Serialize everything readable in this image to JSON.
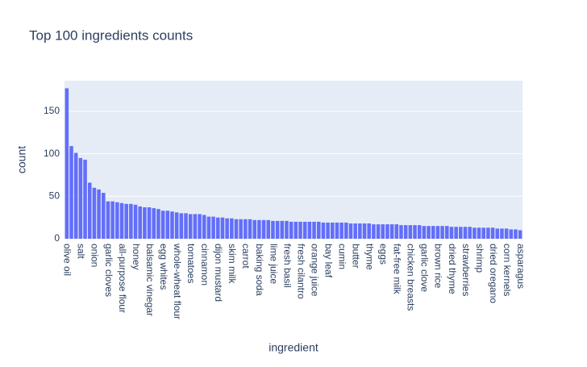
{
  "chart_data": {
    "type": "bar",
    "title": "Top 100 ingredients counts",
    "x_label": "ingredient",
    "y_label": "count",
    "categories": [
      "olive oil",
      null,
      null,
      "salt",
      null,
      null,
      "onion",
      null,
      null,
      "garlic cloves",
      null,
      null,
      "all-purpose flour",
      null,
      null,
      "honey",
      null,
      null,
      "balsamic vinegar",
      null,
      null,
      "egg whites",
      null,
      null,
      "whole-wheat flour",
      null,
      null,
      "tomatoes",
      null,
      null,
      "cinnamon",
      null,
      null,
      "dijon mustard",
      null,
      null,
      "skim milk",
      null,
      null,
      "carrot",
      null,
      null,
      "baking soda",
      null,
      null,
      "lime juice",
      null,
      null,
      "fresh basil",
      null,
      null,
      "fresh cilantro",
      null,
      null,
      "orange juice",
      null,
      null,
      "bay leaf",
      null,
      null,
      "cumin",
      null,
      null,
      "butter",
      null,
      null,
      "thyme",
      null,
      null,
      "eggs",
      null,
      null,
      "fat-free milk",
      null,
      null,
      "chicken breasts",
      null,
      null,
      "garlic clove",
      null,
      null,
      "brown rice",
      null,
      null,
      "dried thyme",
      null,
      null,
      "strawberries",
      null,
      null,
      "shrimp",
      null,
      null,
      "dried oregano",
      null,
      null,
      "corn kernels",
      null,
      null,
      "asparagus"
    ],
    "values": [
      177,
      109,
      101,
      95,
      93,
      66,
      60,
      58,
      54,
      44,
      44,
      43,
      42,
      41,
      41,
      40,
      38,
      37,
      37,
      36,
      35,
      33,
      33,
      32,
      31,
      30,
      30,
      29,
      29,
      29,
      28,
      26,
      26,
      25,
      25,
      24,
      24,
      23,
      23,
      23,
      23,
      22,
      22,
      22,
      22,
      21,
      21,
      21,
      21,
      20,
      20,
      20,
      20,
      20,
      20,
      20,
      19,
      19,
      19,
      19,
      19,
      19,
      18,
      18,
      18,
      18,
      18,
      17,
      17,
      17,
      17,
      17,
      17,
      16,
      16,
      16,
      16,
      16,
      15,
      15,
      15,
      15,
      15,
      15,
      14,
      14,
      14,
      14,
      14,
      13,
      13,
      13,
      13,
      13,
      12,
      12,
      12,
      11,
      11,
      10
    ],
    "color": "#636efa",
    "ylim": [
      0,
      186
    ],
    "yticks": [
      0,
      50,
      100,
      150
    ],
    "grid": true
  }
}
